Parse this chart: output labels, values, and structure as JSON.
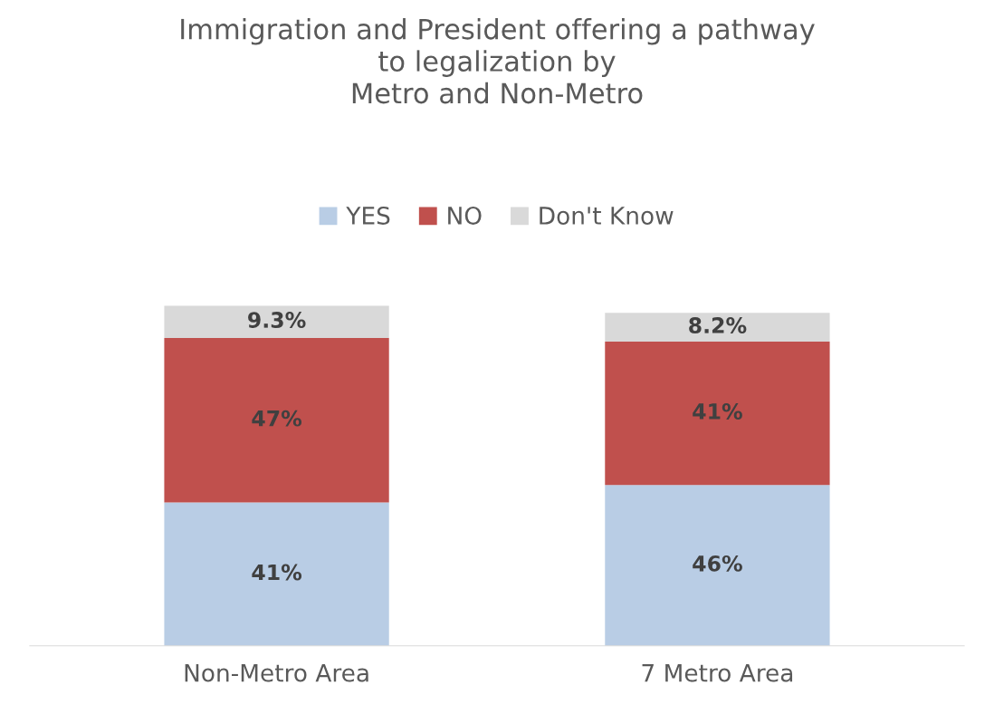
{
  "chart_data": {
    "type": "bar",
    "title": "Immigration and President offering a pathway\nto legalization by\nMetro and Non-Metro",
    "categories": [
      "Non-Metro Area",
      "7 Metro Area"
    ],
    "stacked": true,
    "legend": "top",
    "series": [
      {
        "name": "YES",
        "color": "#b9cde5",
        "values": [
          41,
          46
        ],
        "value_labels": [
          "41%",
          "46%"
        ]
      },
      {
        "name": "NO",
        "color": "#c0504d",
        "values": [
          47,
          41
        ],
        "value_labels": [
          "47%",
          "41%"
        ]
      },
      {
        "name": "Don't Know",
        "color": "#d9d9d9",
        "values": [
          9.3,
          8.2
        ],
        "value_labels": [
          "9.3%",
          "8.2%"
        ]
      }
    ]
  }
}
